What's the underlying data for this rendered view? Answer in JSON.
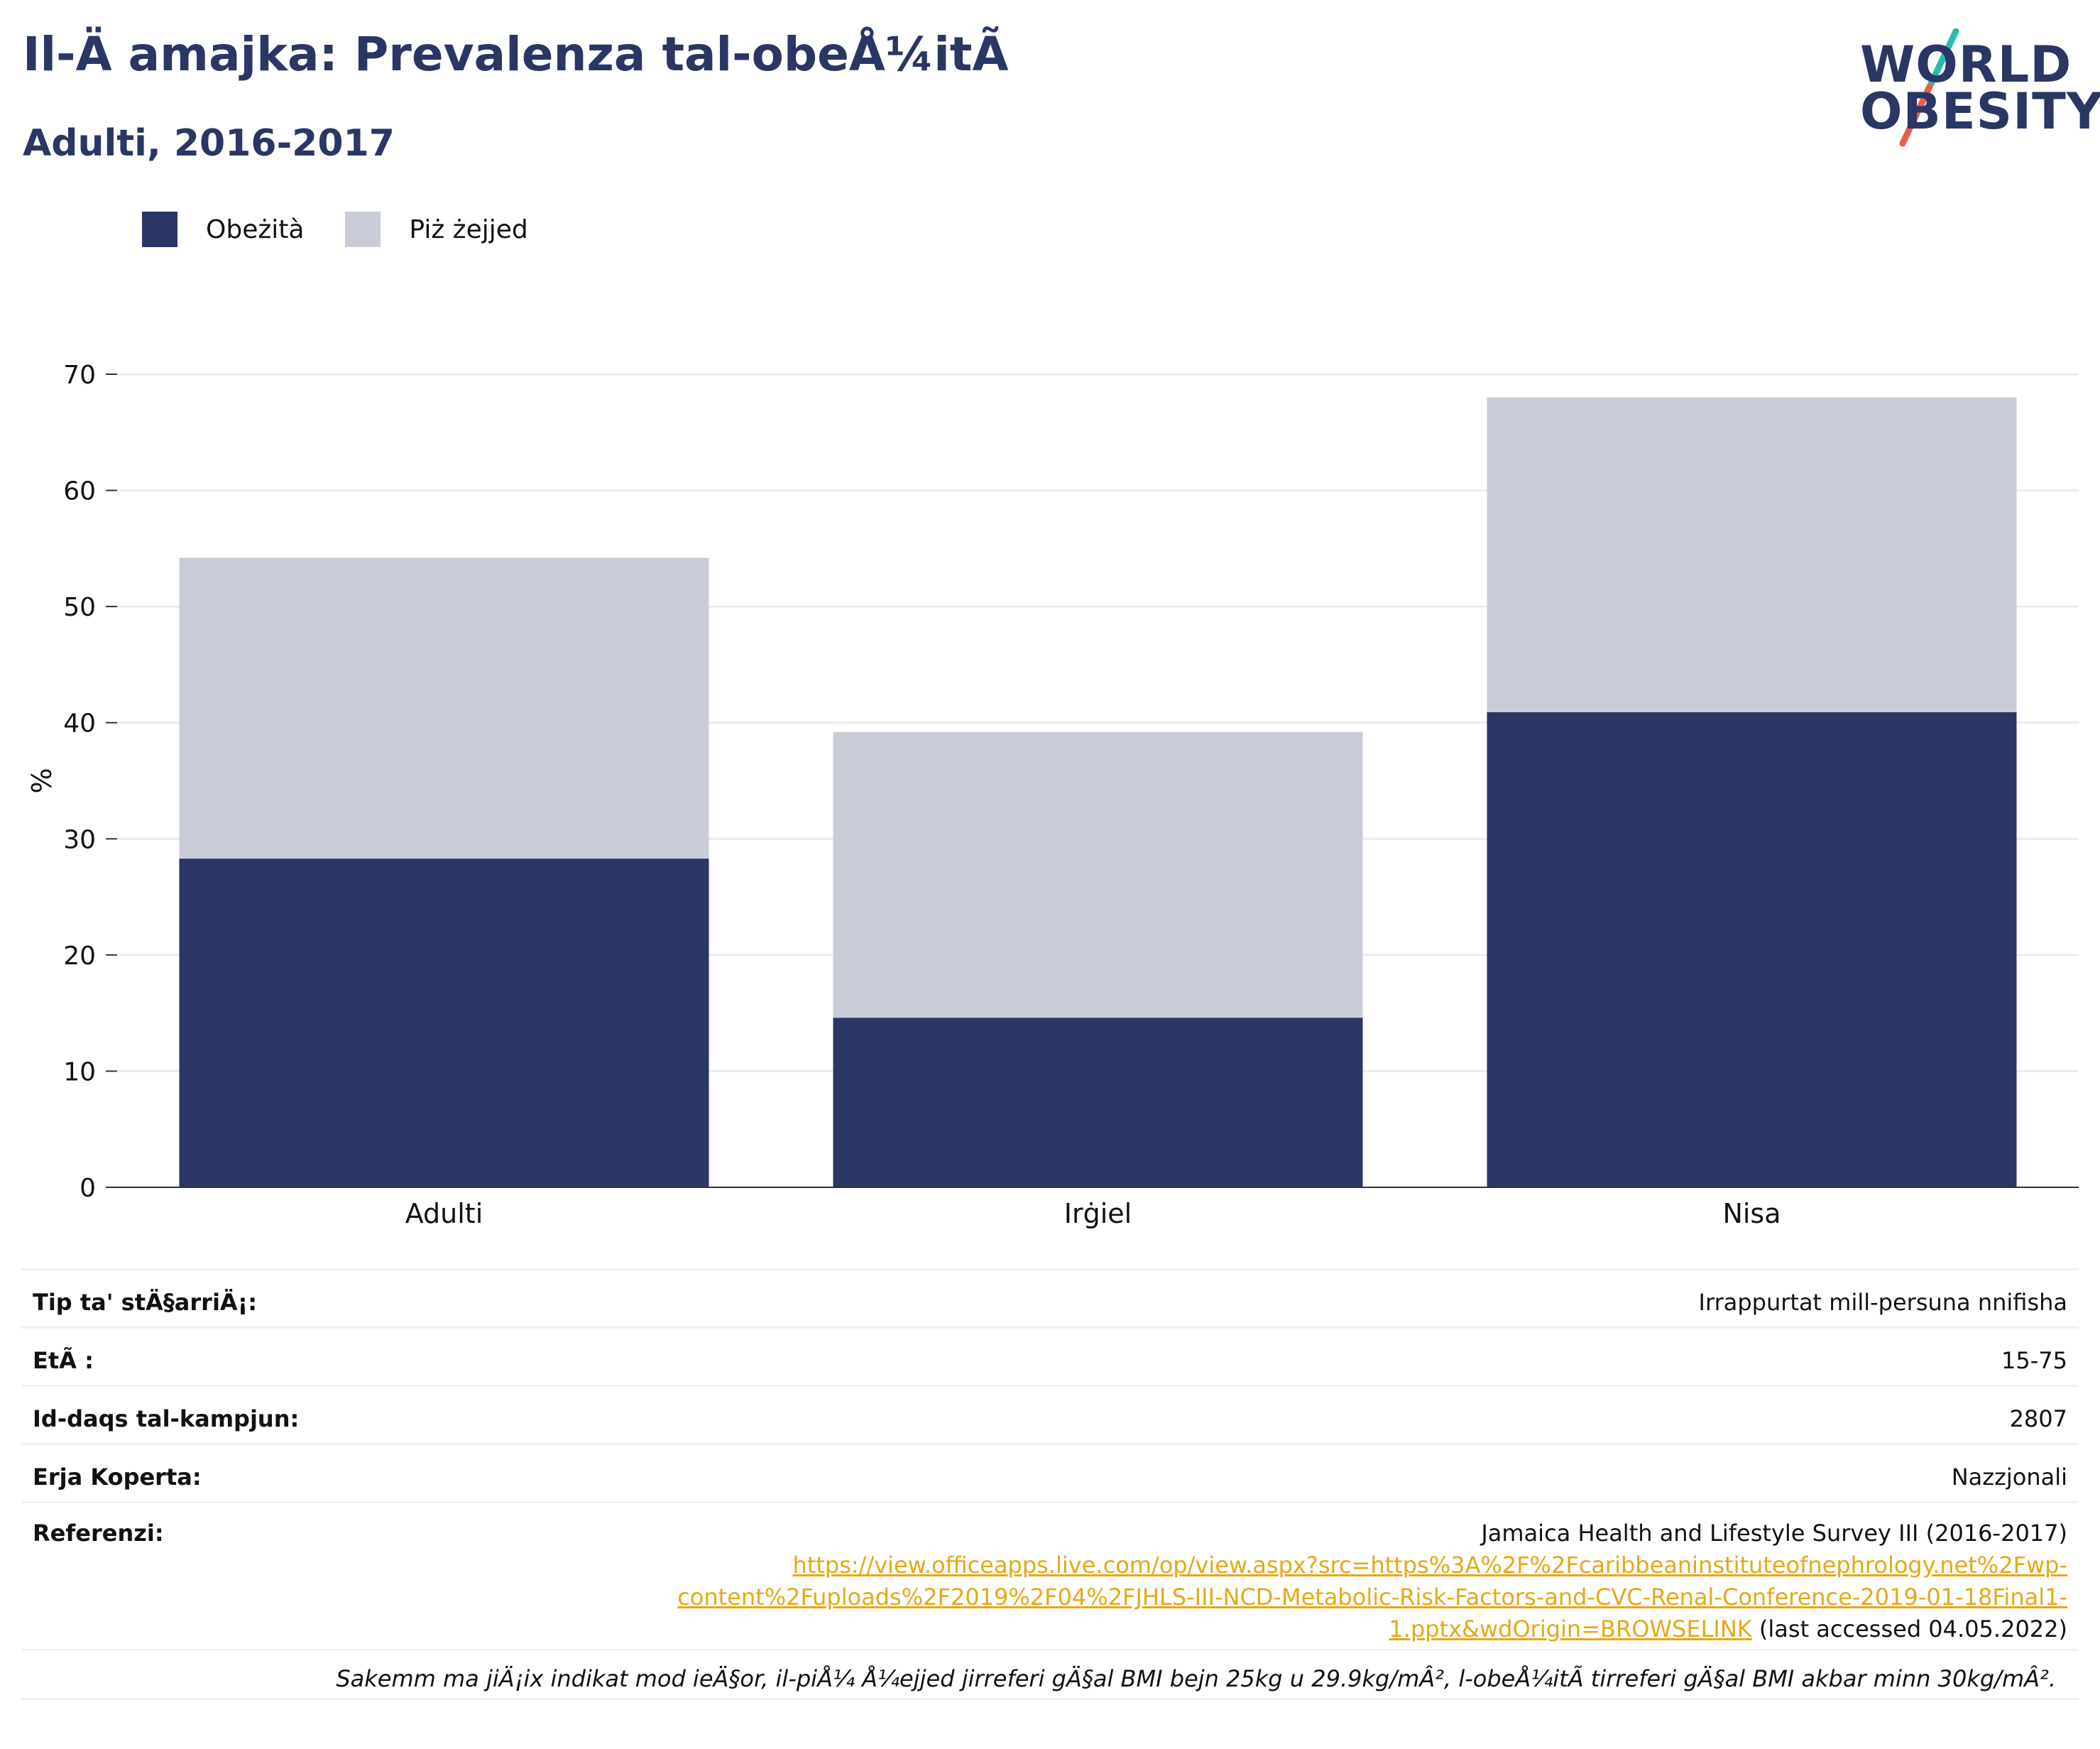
{
  "header": {
    "title": "Il-Ä amajka: Prevalenza tal-obeÅ¼itÃ",
    "subtitle": "Adulti, 2016-2017"
  },
  "logo": {
    "line1": "WORLD",
    "line2": "OBESITY",
    "colors": {
      "text": "#2a3663",
      "stroke_top": "#2bbbad",
      "stroke_bottom": "#e8604c"
    }
  },
  "legend": {
    "items": [
      {
        "label": "Obeżità",
        "color": "#2a3663"
      },
      {
        "label": "Piż żejjed",
        "color": "#c9ccd7"
      }
    ]
  },
  "chart_data": {
    "type": "bar",
    "stacked": true,
    "categories": [
      "Adulti",
      "Irġiel",
      "Nisa"
    ],
    "series": [
      {
        "name": "Obeżità",
        "color": "#2a3663",
        "values": [
          28.3,
          14.6,
          40.9
        ]
      },
      {
        "name": "Piż żejjed",
        "color": "#c9ccd7",
        "values": [
          25.9,
          24.6,
          27.1
        ]
      }
    ],
    "ylabel": "%",
    "ylim": [
      0,
      70
    ],
    "yticks": [
      0,
      10,
      20,
      30,
      40,
      50,
      60,
      70
    ],
    "grid": true,
    "legend_position": "top-left"
  },
  "info": {
    "rows": [
      {
        "label": "Tip ta' stÄ§arriÄ¡:",
        "value": "Irrappurtat mill-persuna nnifisha"
      },
      {
        "label": "EtÃ :",
        "value": "15-75"
      },
      {
        "label": "Id-daqs tal-kampjun:",
        "value": "2807"
      },
      {
        "label": "Erja Koperta:",
        "value": "Nazzjonali"
      }
    ],
    "reference": {
      "label": "Referenzi:",
      "title": "Jamaica Health and Lifestyle Survey III (2016-2017)",
      "link_line1": "https://view.officeapps.live.com/op/view.aspx?src=https%3A%2F%2Fcaribbeaninstituteofnephrology.net%2Fwp-",
      "link_line2": "content%2Fuploads%2F2019%2F04%2FJHLS-III-NCD-Metabolic-Risk-Factors-and-CVC-Renal-Conference-2019-01-18Final1-",
      "link_line3": "1.pptx&wdOrigin=BROWSELINK",
      "accessed": " (last accessed 04.05.2022)"
    },
    "note": "Sakemm ma jiÄ¡ix indikat mod ieÄ§or, il-piÅ¼ Å¼ejjed jirreferi gÄ§al BMI bejn 25kg u 29.9kg/mÂ², l-obeÅ¼itÃ  tirreferi gÄ§al BMI akbar minn 30kg/mÂ²."
  }
}
